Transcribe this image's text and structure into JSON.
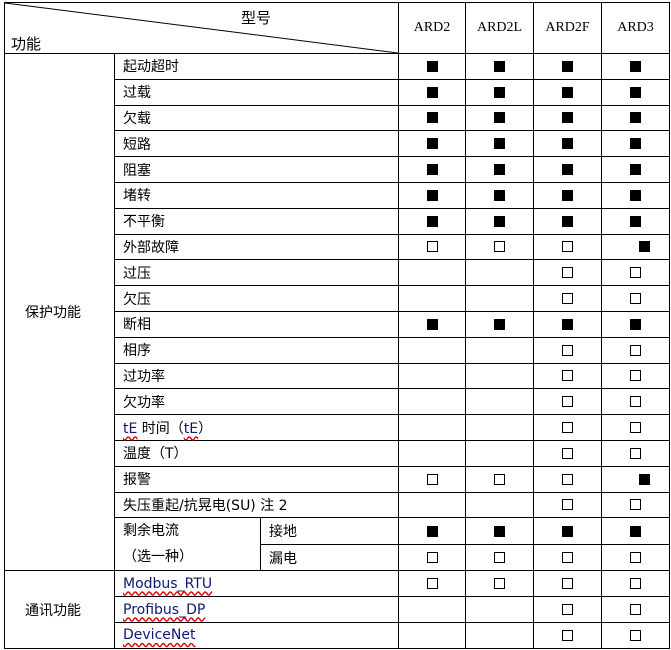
{
  "header": {
    "model_label": "型号",
    "function_label": "功能",
    "models": [
      "ARD2",
      "ARD2L",
      "ARD2F",
      "ARD3"
    ]
  },
  "groups": [
    {
      "name": "保护功能",
      "rows": [
        {
          "label": "起动超时",
          "marks": [
            "filled",
            "filled",
            "filled",
            "filled"
          ]
        },
        {
          "label": "过载",
          "marks": [
            "filled",
            "filled",
            "filled",
            "filled"
          ]
        },
        {
          "label": "欠载",
          "marks": [
            "filled",
            "filled",
            "filled",
            "filled"
          ]
        },
        {
          "label": "短路",
          "marks": [
            "filled",
            "filled",
            "filled",
            "filled"
          ]
        },
        {
          "label": "阻塞",
          "marks": [
            "filled",
            "filled",
            "filled",
            "filled"
          ]
        },
        {
          "label": "堵转",
          "marks": [
            "filled",
            "filled",
            "filled",
            "filled"
          ]
        },
        {
          "label": "不平衡",
          "marks": [
            "filled",
            "filled",
            "filled",
            "filled"
          ]
        },
        {
          "label": "外部故障",
          "marks": [
            "empty",
            "empty",
            "empty",
            "filled"
          ]
        },
        {
          "label": "过压",
          "marks": [
            "",
            "",
            "empty",
            "empty"
          ]
        },
        {
          "label": "欠压",
          "marks": [
            "",
            "",
            "empty",
            "empty"
          ]
        },
        {
          "label": "断相",
          "marks": [
            "filled",
            "filled",
            "filled",
            "filled"
          ]
        },
        {
          "label": "相序",
          "marks": [
            "",
            "",
            "empty",
            "empty"
          ]
        },
        {
          "label": "过功率",
          "marks": [
            "",
            "",
            "empty",
            "empty"
          ]
        },
        {
          "label": "欠功率",
          "marks": [
            "",
            "",
            "empty",
            "empty"
          ]
        },
        {
          "label": "tE 时间（tE）",
          "marks": [
            "",
            "",
            "empty",
            "empty"
          ]
        },
        {
          "label": "温度（T）",
          "marks": [
            "",
            "",
            "empty",
            "empty"
          ]
        },
        {
          "label": "报警",
          "marks": [
            "empty",
            "empty",
            "empty",
            "filled"
          ]
        },
        {
          "label": "失压重起/抗晃电(SU) 注 2",
          "marks": [
            "",
            "",
            "empty",
            "empty"
          ]
        }
      ],
      "residual": {
        "label_line1": "剩余电流",
        "label_line2": "（选一种）",
        "options": [
          {
            "label": "接地",
            "marks": [
              "filled",
              "filled",
              "filled",
              "filled"
            ]
          },
          {
            "label": "漏电",
            "marks": [
              "empty",
              "empty",
              "empty",
              "empty"
            ]
          }
        ]
      }
    },
    {
      "name": "通讯功能",
      "rows": [
        {
          "label": "Modbus_RTU",
          "marks": [
            "empty",
            "empty",
            "empty",
            "empty"
          ]
        },
        {
          "label": "Profibus_DP",
          "marks": [
            "",
            "",
            "empty",
            "empty"
          ]
        },
        {
          "label": "DeviceNet",
          "marks": [
            "",
            "",
            "empty",
            "empty"
          ]
        }
      ]
    }
  ]
}
